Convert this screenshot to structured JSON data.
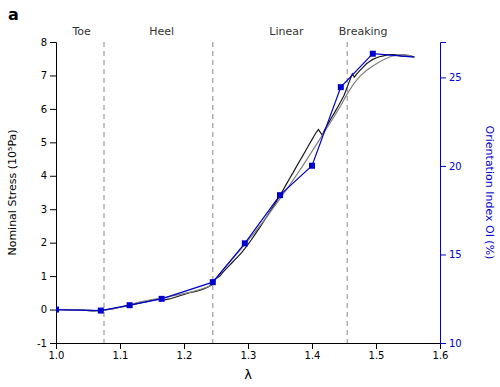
{
  "chart_data": {
    "type": "line",
    "title": "a",
    "x_label": "λ",
    "y_label": "Nominal Stress (10⁵Pa)",
    "y2_label": "Orientation Index OI (%)",
    "xlim": [
      1.0,
      1.6
    ],
    "ylim": [
      -1,
      8
    ],
    "y2lim": [
      10,
      27
    ],
    "xticks": [
      {
        "value": 1.0,
        "label": "1.0"
      },
      1.1,
      1.2,
      1.3,
      1.4,
      1.5,
      1.6
    ],
    "yticks": [
      -1,
      0,
      1,
      2,
      3,
      4,
      5,
      6,
      7,
      8
    ],
    "y2ticks": [
      10,
      15,
      20,
      25
    ],
    "grid": false,
    "vlines": [
      1.075,
      1.245,
      1.455
    ],
    "annotations": [
      {
        "text": "Toe",
        "x": 1.04
      },
      {
        "text": "Heel",
        "x": 1.165
      },
      {
        "text": "Linear",
        "x": 1.36
      },
      {
        "text": "Breaking",
        "x": 1.48
      }
    ],
    "series": [
      {
        "color": "#1a1a1a",
        "type": "line",
        "x": [
          1.0,
          1.005,
          1.01,
          1.015,
          1.02,
          1.025,
          1.03,
          1.035,
          1.04,
          1.045,
          1.05,
          1.055,
          1.06,
          1.065,
          1.07,
          1.075,
          1.08,
          1.085,
          1.09,
          1.095,
          1.1,
          1.105,
          1.11,
          1.115,
          1.12,
          1.125,
          1.13,
          1.135,
          1.14,
          1.145,
          1.15,
          1.155,
          1.16,
          1.165,
          1.17,
          1.175,
          1.18,
          1.185,
          1.19,
          1.195,
          1.2,
          1.205,
          1.21,
          1.215,
          1.22,
          1.225,
          1.23,
          1.235,
          1.24,
          1.245,
          1.248,
          1.252,
          1.256,
          1.26,
          1.265,
          1.27,
          1.275,
          1.28,
          1.285,
          1.29,
          1.295,
          1.3,
          1.305,
          1.31,
          1.315,
          1.32,
          1.325,
          1.33,
          1.335,
          1.34,
          1.345,
          1.35,
          1.355,
          1.36,
          1.365,
          1.37,
          1.375,
          1.38,
          1.385,
          1.39,
          1.395,
          1.4,
          1.403,
          1.406,
          1.41,
          1.413,
          1.416,
          1.42,
          1.425,
          1.43,
          1.435,
          1.44,
          1.445,
          1.45,
          1.455,
          1.46,
          1.463,
          1.466,
          1.47,
          1.475,
          1.48,
          1.485,
          1.49,
          1.495,
          1.5,
          1.505,
          1.51,
          1.515,
          1.52,
          1.525,
          1.53,
          1.535,
          1.54,
          1.545,
          1.55,
          1.555,
          1.56
        ],
        "values": [
          0.0,
          0.0,
          0.0,
          -0.01,
          -0.01,
          -0.01,
          -0.01,
          -0.01,
          -0.01,
          -0.02,
          -0.03,
          -0.04,
          -0.04,
          -0.03,
          -0.02,
          -0.01,
          0.0,
          0.01,
          0.03,
          0.05,
          0.07,
          0.09,
          0.11,
          0.13,
          0.15,
          0.17,
          0.19,
          0.21,
          0.23,
          0.25,
          0.28,
          0.3,
          0.32,
          0.3,
          0.29,
          0.31,
          0.33,
          0.36,
          0.39,
          0.42,
          0.45,
          0.48,
          0.51,
          0.53,
          0.55,
          0.58,
          0.61,
          0.65,
          0.7,
          0.76,
          0.9,
          0.95,
          1.0,
          1.1,
          1.2,
          1.3,
          1.4,
          1.5,
          1.6,
          1.7,
          1.82,
          1.95,
          2.08,
          2.22,
          2.36,
          2.5,
          2.65,
          2.8,
          2.95,
          3.1,
          3.25,
          3.42,
          3.58,
          3.75,
          3.92,
          4.08,
          4.25,
          4.42,
          4.58,
          4.75,
          4.92,
          5.08,
          5.18,
          5.28,
          5.38,
          5.3,
          5.22,
          5.38,
          5.55,
          5.72,
          5.88,
          6.05,
          6.22,
          6.4,
          6.65,
          6.9,
          7.05,
          6.95,
          7.05,
          7.15,
          7.25,
          7.35,
          7.42,
          7.48,
          7.52,
          7.56,
          7.58,
          7.6,
          7.62,
          7.62,
          7.62,
          7.6,
          7.58,
          7.58,
          7.6,
          7.58,
          7.55
        ]
      },
      {
        "color": "#808080",
        "type": "line",
        "x": [
          1.0,
          1.01,
          1.02,
          1.03,
          1.04,
          1.05,
          1.06,
          1.07,
          1.08,
          1.09,
          1.1,
          1.11,
          1.12,
          1.13,
          1.14,
          1.15,
          1.16,
          1.17,
          1.18,
          1.19,
          1.2,
          1.21,
          1.22,
          1.23,
          1.24,
          1.245,
          1.255,
          1.265,
          1.275,
          1.285,
          1.295,
          1.305,
          1.315,
          1.325,
          1.335,
          1.345,
          1.355,
          1.365,
          1.375,
          1.385,
          1.395,
          1.405,
          1.415,
          1.425,
          1.435,
          1.445,
          1.455,
          1.465,
          1.475,
          1.485,
          1.495,
          1.505,
          1.515,
          1.525,
          1.535,
          1.545,
          1.555
        ],
        "values": [
          0.0,
          0.0,
          0.0,
          0.0,
          -0.01,
          -0.02,
          -0.03,
          -0.02,
          0.0,
          0.03,
          0.07,
          0.12,
          0.17,
          0.22,
          0.26,
          0.3,
          0.33,
          0.36,
          0.4,
          0.44,
          0.48,
          0.52,
          0.57,
          0.63,
          0.7,
          0.8,
          1.05,
          1.28,
          1.5,
          1.72,
          1.95,
          2.18,
          2.42,
          2.66,
          2.92,
          3.18,
          3.45,
          3.72,
          4.0,
          4.28,
          4.58,
          4.88,
          5.18,
          5.48,
          5.78,
          6.1,
          6.45,
          6.75,
          6.98,
          7.15,
          7.28,
          7.4,
          7.5,
          7.58,
          7.62,
          7.62,
          7.58
        ]
      },
      {
        "color": "#0000cc",
        "type": "line",
        "x": [
          1.0,
          1.07,
          1.115,
          1.165,
          1.245,
          1.295,
          1.35,
          1.4,
          1.445,
          1.495,
          1.56
        ],
        "values": [
          0.0,
          -0.03,
          0.13,
          0.32,
          0.82,
          1.98,
          3.42,
          4.3,
          6.65,
          7.65,
          7.55
        ]
      },
      {
        "color": "#0000cc",
        "type": "scatter",
        "marker": "square",
        "x": [
          1.0,
          1.07,
          1.115,
          1.165,
          1.245,
          1.295,
          1.35,
          1.4,
          1.445,
          1.495
        ],
        "values": [
          0.0,
          -0.03,
          0.13,
          0.32,
          0.82,
          1.98,
          3.42,
          4.3,
          6.65,
          7.65
        ]
      }
    ]
  }
}
